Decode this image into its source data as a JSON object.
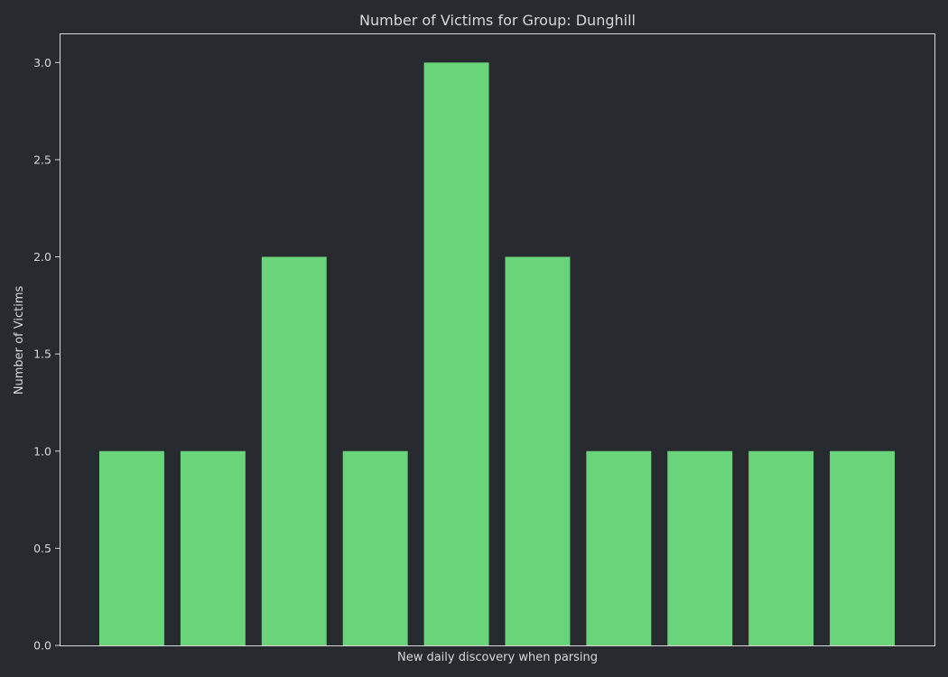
{
  "chart_data": {
    "type": "bar",
    "title": "Number of Victims for Group: Dunghill",
    "xlabel": "New daily discovery when parsing",
    "ylabel": "Number of Victims",
    "values": [
      1,
      1,
      2,
      1,
      3,
      2,
      1,
      1,
      1,
      1
    ],
    "ylim": [
      0,
      3.15
    ],
    "yticks": [
      0.0,
      0.5,
      1.0,
      1.5,
      2.0,
      2.5,
      3.0
    ],
    "ytick_labels": [
      "0.0",
      "0.5",
      "1.0",
      "1.5",
      "2.0",
      "2.5",
      "3.0"
    ],
    "grid": false,
    "x_tick_labels_visible": false,
    "colors": {
      "background": "#272a2f",
      "bar": "#6ad47a",
      "text": "#d8d8d8",
      "frame": "#d8d8d8"
    }
  }
}
